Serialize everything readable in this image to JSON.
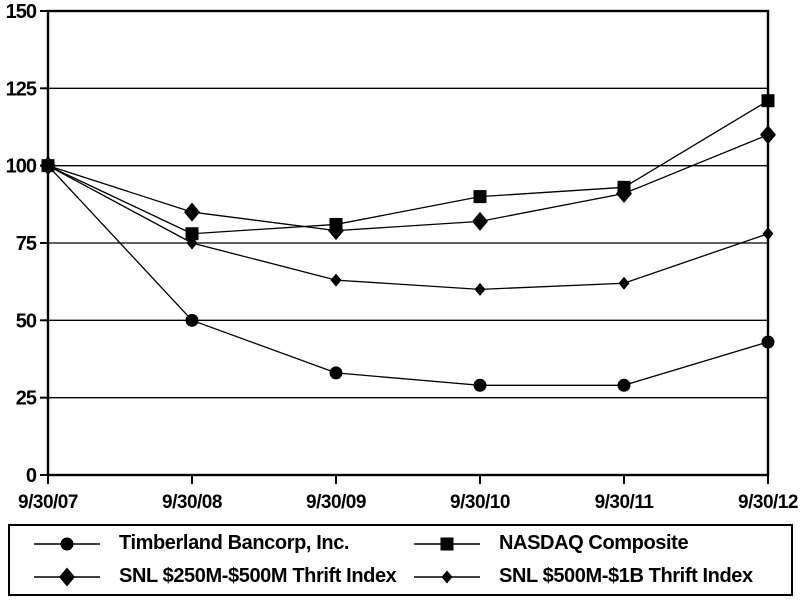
{
  "chart_data": {
    "type": "line",
    "title": "",
    "xlabel": "",
    "ylabel": "",
    "categories": [
      "9/30/07",
      "9/30/08",
      "9/30/09",
      "9/30/10",
      "9/30/11",
      "9/30/12"
    ],
    "series": [
      {
        "name": "Timberland Bancorp, Inc.",
        "marker": "circle",
        "values": [
          100,
          50,
          33,
          29,
          29,
          43
        ]
      },
      {
        "name": "NASDAQ Composite",
        "marker": "square",
        "values": [
          100,
          78,
          81,
          90,
          93,
          121
        ]
      },
      {
        "name": "SNL $250M-$500M Thrift Index",
        "marker": "diamond-large",
        "values": [
          100,
          85,
          79,
          82,
          91,
          110
        ]
      },
      {
        "name": "SNL $500M-$1B Thrift Index",
        "marker": "diamond-small",
        "values": [
          100,
          75,
          63,
          60,
          62,
          78
        ]
      }
    ],
    "ylim": [
      0,
      150
    ],
    "yticks": [
      0,
      25,
      50,
      75,
      100,
      125,
      150
    ],
    "grid": "horizontal",
    "legend_position": "bottom-box",
    "colors": {
      "line": "#000000",
      "marker": "#000000",
      "text": "#000000",
      "background": "#ffffff",
      "border": "#000000"
    }
  }
}
